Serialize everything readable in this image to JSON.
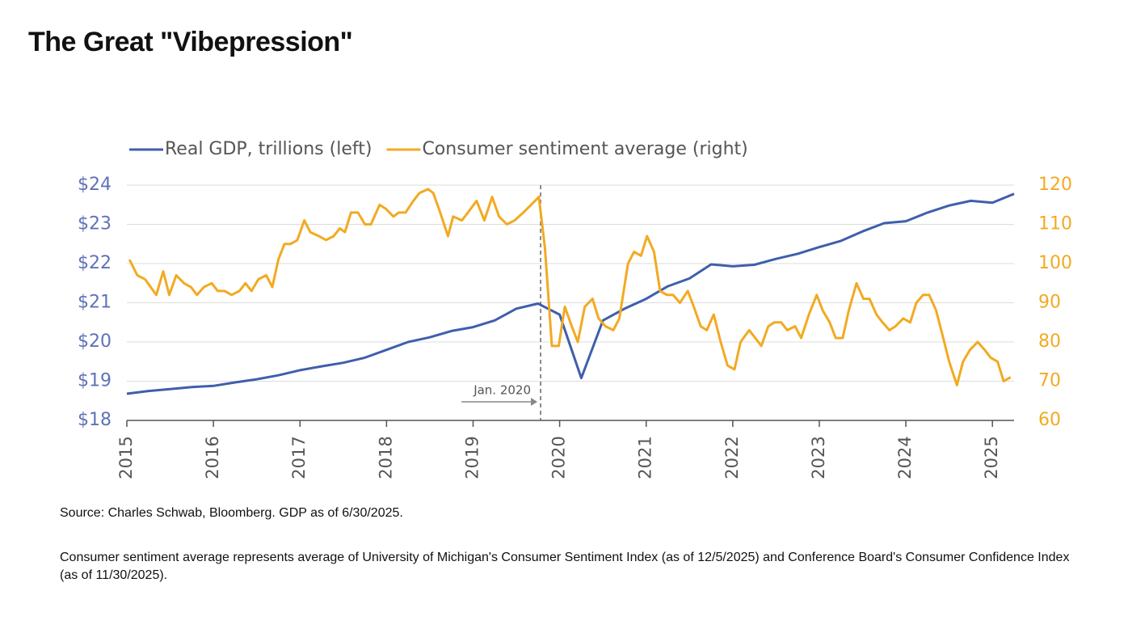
{
  "chart_data": {
    "type": "line",
    "title": "The Great \"Vibepression\"",
    "source": "Source: Charles Schwab, Bloomberg. GDP as of 6/30/2025.",
    "note": "Consumer sentiment average represents average of University of Michigan's Consumer Sentiment Index (as of 12/5/2025) and Conference Board's Consumer Confidence Index (as of 11/30/2025).",
    "xlim": [
      2015,
      2025.25
    ],
    "xticks": [
      2015,
      2016,
      2017,
      2018,
      2019,
      2020,
      2021,
      2022,
      2023,
      2024,
      2025
    ],
    "ylim": [
      18,
      24
    ],
    "yticks": [
      {
        "value": 18,
        "label": "$18"
      },
      {
        "value": 19,
        "label": "$19"
      },
      {
        "value": 20,
        "label": "$20"
      },
      {
        "value": 21,
        "label": "$21"
      },
      {
        "value": 22,
        "label": "$22"
      },
      {
        "value": 23,
        "label": "$23"
      },
      {
        "value": 24,
        "label": "$24"
      }
    ],
    "y2lim": [
      60,
      120
    ],
    "y2ticks": [
      60,
      70,
      80,
      90,
      100,
      110,
      120
    ],
    "grid": true,
    "legend": "top",
    "annotation": {
      "text": "Jan. 2020",
      "x": 2019.78
    },
    "series": [
      {
        "name": "Real GDP, trillions (left)",
        "color": "#3f5fab",
        "x": [
          2015,
          2015.25,
          2015.5,
          2015.75,
          2016,
          2016.25,
          2016.5,
          2016.75,
          2017,
          2017.25,
          2017.5,
          2017.75,
          2018,
          2018.25,
          2018.5,
          2018.75,
          2019,
          2019.25,
          2019.5,
          2019.75,
          2020,
          2020.25,
          2020.5,
          2020.75,
          2021,
          2021.25,
          2021.5,
          2021.75,
          2022,
          2022.25,
          2022.5,
          2022.75,
          2023,
          2023.25,
          2023.5,
          2023.75,
          2024,
          2024.25,
          2024.5,
          2024.75,
          2025,
          2025.25
        ],
        "values": [
          18.68,
          18.75,
          18.8,
          18.85,
          18.88,
          18.97,
          19.05,
          19.15,
          19.28,
          19.38,
          19.47,
          19.6,
          19.8,
          20.0,
          20.12,
          20.28,
          20.38,
          20.55,
          20.85,
          20.98,
          20.7,
          19.08,
          20.55,
          20.85,
          21.1,
          21.42,
          21.62,
          21.98,
          21.93,
          21.97,
          22.12,
          22.25,
          22.42,
          22.58,
          22.82,
          23.03,
          23.08,
          23.3,
          23.48,
          23.6,
          23.55,
          23.78
        ]
      },
      {
        "name": "Consumer sentiment average (right)",
        "color": "#f2aa22",
        "axis": "y2",
        "x": [
          2015.03,
          2015.12,
          2015.21,
          2015.34,
          2015.42,
          2015.49,
          2015.57,
          2015.66,
          2015.74,
          2015.81,
          2015.89,
          2015.98,
          2016.05,
          2016.13,
          2016.21,
          2016.3,
          2016.37,
          2016.44,
          2016.52,
          2016.61,
          2016.68,
          2016.75,
          2016.82,
          2016.89,
          2016.97,
          2017.05,
          2017.12,
          2017.22,
          2017.3,
          2017.39,
          2017.46,
          2017.52,
          2017.59,
          2017.67,
          2017.75,
          2017.82,
          2017.92,
          2017.99,
          2018.08,
          2018.14,
          2018.22,
          2018.31,
          2018.38,
          2018.48,
          2018.54,
          2018.62,
          2018.71,
          2018.77,
          2018.87,
          2018.94,
          2019.04,
          2019.13,
          2019.22,
          2019.3,
          2019.39,
          2019.48,
          2019.58,
          2019.67,
          2019.76,
          2019.83,
          2019.91,
          2019.99,
          2020.06,
          2020.14,
          2020.21,
          2020.29,
          2020.38,
          2020.45,
          2020.53,
          2020.62,
          2020.69,
          2020.79,
          2020.86,
          2020.94,
          2021.01,
          2021.09,
          2021.16,
          2021.24,
          2021.31,
          2021.39,
          2021.48,
          2021.55,
          2021.63,
          2021.7,
          2021.78,
          2021.86,
          2021.94,
          2022.02,
          2022.09,
          2022.19,
          2022.26,
          2022.33,
          2022.41,
          2022.48,
          2022.56,
          2022.63,
          2022.72,
          2022.79,
          2022.88,
          2022.97,
          2023.04,
          2023.12,
          2023.19,
          2023.27,
          2023.34,
          2023.43,
          2023.51,
          2023.58,
          2023.66,
          2023.73,
          2023.81,
          2023.88,
          2023.97,
          2024.05,
          2024.12,
          2024.2,
          2024.27,
          2024.35,
          2024.42,
          2024.5,
          2024.59,
          2024.66,
          2024.74,
          2024.83,
          2024.91,
          2024.98,
          2025.06,
          2025.13,
          2025.21
        ],
        "values": [
          101,
          97,
          96,
          92,
          98,
          92,
          97,
          95,
          94,
          92,
          94,
          95,
          93,
          93,
          92,
          93,
          95,
          93,
          96,
          97,
          94,
          101,
          105,
          105,
          106,
          111,
          108,
          107,
          106,
          107,
          109,
          108,
          113,
          113,
          110,
          110,
          115,
          114,
          112,
          113,
          113,
          116,
          118,
          119,
          118,
          113,
          107,
          112,
          111,
          113,
          116,
          111,
          117,
          112,
          110,
          111,
          113,
          115,
          117,
          104,
          79,
          79,
          89,
          84,
          80,
          89,
          91,
          86,
          84,
          83,
          86,
          100,
          103,
          102,
          107,
          103,
          93,
          92,
          92,
          90,
          93,
          89,
          84,
          83,
          87,
          80,
          74,
          73,
          80,
          83,
          81,
          79,
          84,
          85,
          85,
          83,
          84,
          81,
          87,
          92,
          88,
          85,
          81,
          81,
          88,
          95,
          91,
          91,
          87,
          85,
          83,
          84,
          86,
          85,
          90,
          92,
          92,
          88,
          82,
          75,
          69,
          75,
          78,
          80,
          78,
          76,
          75,
          70,
          71
        ]
      }
    ]
  }
}
